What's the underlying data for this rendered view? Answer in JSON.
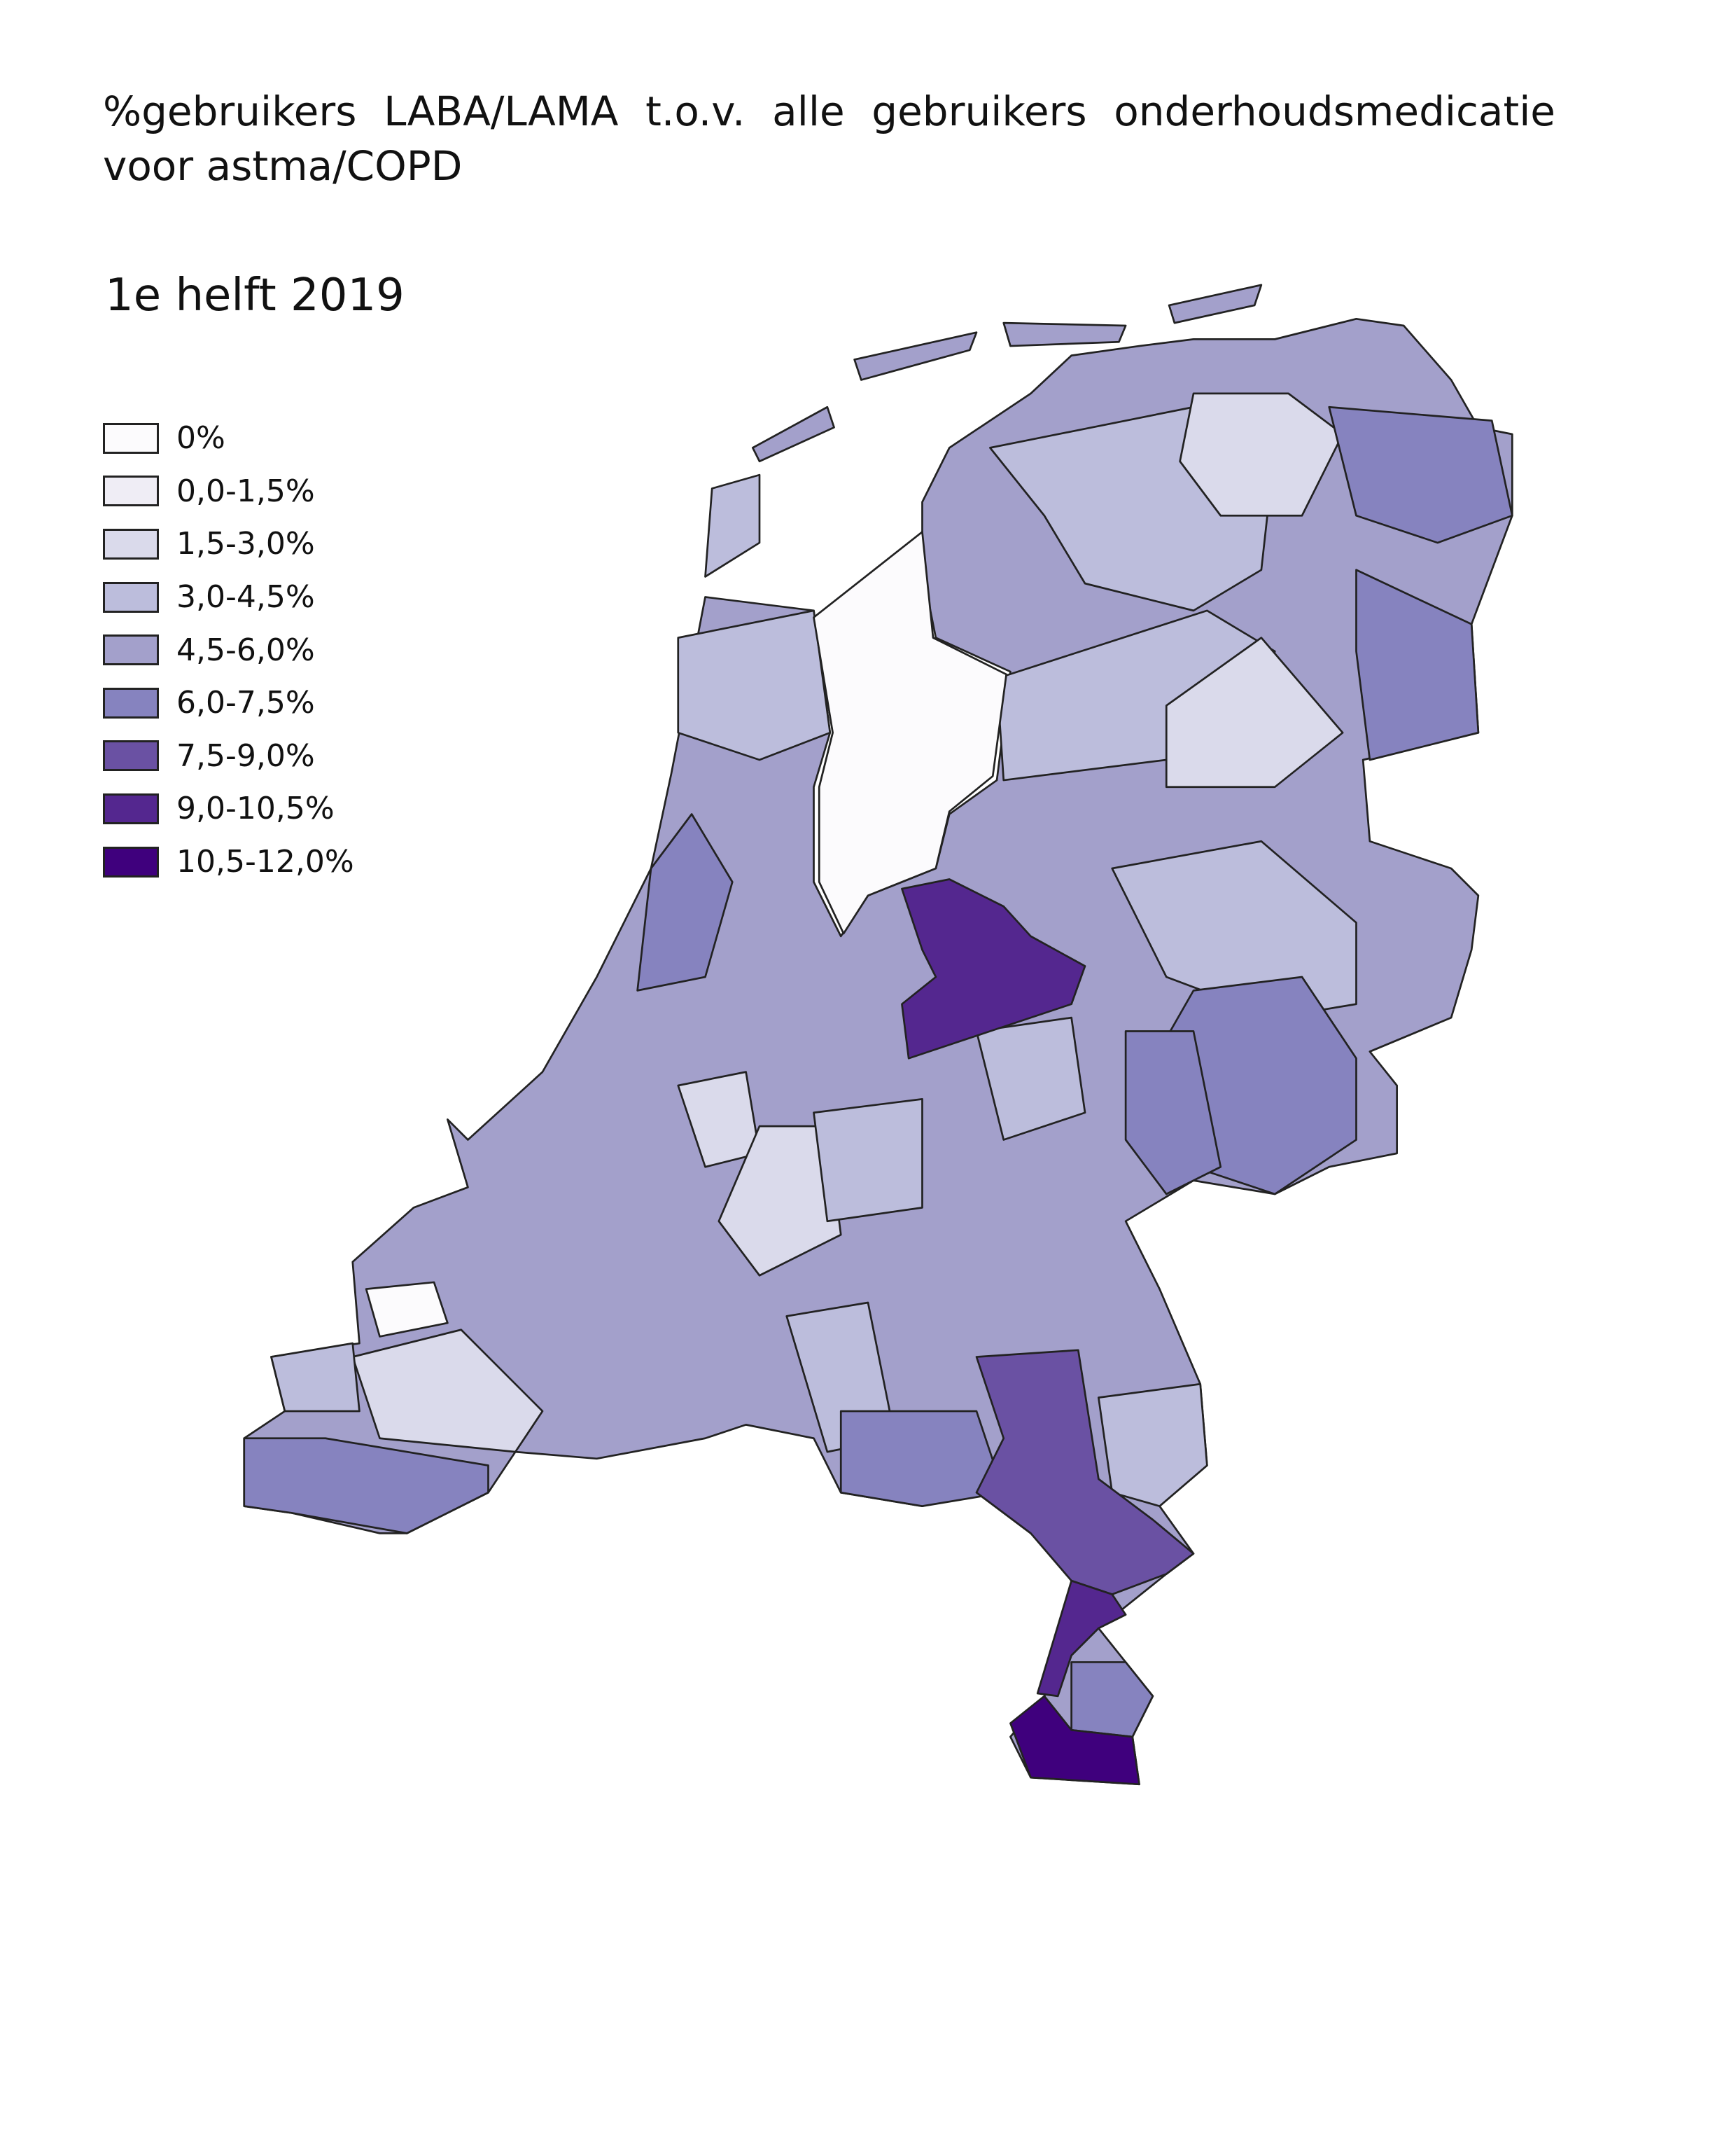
{
  "title": "%gebruikers LABA/LAMA t.o.v. alle gebruikers onderhoudsmedicatie voor astma/COPD",
  "subtitle": "1e helft 2019",
  "legend": {
    "items": [
      {
        "label": "0%",
        "color": "#fcfbfd"
      },
      {
        "label": "0,0-1,5%",
        "color": "#efedf5"
      },
      {
        "label": "1,5-3,0%",
        "color": "#dadaeb"
      },
      {
        "label": "3,0-4,5%",
        "color": "#bcbddc"
      },
      {
        "label": "4,5-6,0%",
        "color": "#a3a0cb"
      },
      {
        "label": "6,0-7,5%",
        "color": "#8683bf"
      },
      {
        "label": "7,5-9,0%",
        "color": "#6a51a3"
      },
      {
        "label": "9,0-10,5%",
        "color": "#54278f"
      },
      {
        "label": "10,5-12,0%",
        "color": "#3f007d"
      }
    ]
  }
}
